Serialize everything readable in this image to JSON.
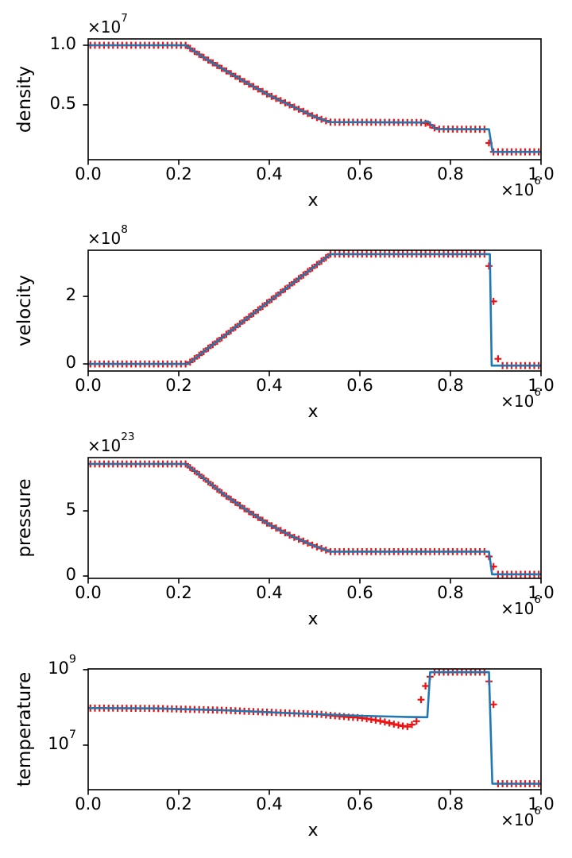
{
  "figure": {
    "background": "#ffffff",
    "line_color": "#1f77b4",
    "marker_color": "#ee1111",
    "axis_color": "#000000"
  },
  "x_axis": {
    "label": "x",
    "lim": [
      0,
      1000000
    ],
    "offset": {
      "text": "×10",
      "exp": "6"
    },
    "ticks": [
      {
        "v": 0,
        "label": "0.0"
      },
      {
        "v": 200000,
        "label": "0.2"
      },
      {
        "v": 400000,
        "label": "0.4"
      },
      {
        "v": 600000,
        "label": "0.6"
      },
      {
        "v": 800000,
        "label": "0.8"
      },
      {
        "v": 1000000,
        "label": "1.0"
      }
    ]
  },
  "marker_series": {
    "style": "plus",
    "count": 100,
    "x_first": 5000,
    "x_spacing": 10000
  },
  "chart_data": [
    {
      "type": "line",
      "ylabel": "density",
      "yscale": "linear",
      "ylim": [
        400000,
        10530000
      ],
      "y_offset": {
        "text": "×10",
        "exp": "7"
      },
      "yticks": [
        {
          "v": 5000000,
          "label": "0.5"
        },
        {
          "v": 10000000,
          "label": "1.0"
        }
      ],
      "line": [
        [
          0,
          10000000.0
        ],
        [
          215000,
          10000000.0
        ],
        [
          250000,
          9100000.0
        ],
        [
          300000,
          7950000.0
        ],
        [
          350000,
          6850000.0
        ],
        [
          400000,
          5800000.0
        ],
        [
          450000,
          4900000.0
        ],
        [
          500000,
          4000000.0
        ],
        [
          533000,
          3550000.0
        ],
        [
          740000,
          3520000.0
        ],
        [
          750000,
          3620000.0
        ],
        [
          758000,
          3300000.0
        ],
        [
          768000,
          2970000.0
        ],
        [
          885000,
          2950000.0
        ],
        [
          893000,
          1050000.0
        ],
        [
          1000000,
          1050000.0
        ]
      ],
      "marker_overrides": [
        [
          745000,
          3450000.0
        ],
        [
          755000,
          3320000.0
        ],
        [
          885000,
          1800000.0
        ]
      ]
    },
    {
      "type": "line",
      "ylabel": "velocity",
      "yscale": "linear",
      "ylim": [
        -21000000,
        336500000
      ],
      "y_offset": {
        "text": "×10",
        "exp": "8"
      },
      "yticks": [
        {
          "v": 0,
          "label": "0"
        },
        {
          "v": 200000000,
          "label": "2"
        }
      ],
      "line": [
        [
          0,
          0
        ],
        [
          220000,
          0
        ],
        [
          535000,
          325000000.0
        ],
        [
          887000,
          325000000.0
        ],
        [
          891000,
          -5000000.0
        ],
        [
          1000000,
          -5000000.0
        ]
      ],
      "marker_overrides": [
        [
          885000,
          290000000.0
        ],
        [
          895000,
          185000000.0
        ],
        [
          905000,
          15000000.0
        ]
      ]
    },
    {
      "type": "line",
      "ylabel": "pressure",
      "yscale": "linear",
      "ylim": [
        -1.8e+22,
        9.09e+23
      ],
      "y_offset": {
        "text": "×10",
        "exp": "23"
      },
      "yticks": [
        {
          "v": 0,
          "label": "0"
        },
        {
          "v": 5e+23,
          "label": "5"
        }
      ],
      "line": [
        [
          0,
          8.6e+23
        ],
        [
          215000,
          8.6e+23
        ],
        [
          250000,
          7.65e+23
        ],
        [
          300000,
          6.25e+23
        ],
        [
          350000,
          5.05e+23
        ],
        [
          400000,
          3.95e+23
        ],
        [
          450000,
          3.05e+23
        ],
        [
          500000,
          2.3e+23
        ],
        [
          535000,
          1.87e+23
        ],
        [
          885000,
          1.87e+23
        ],
        [
          892000,
          1.3e+22
        ],
        [
          1000000,
          1.3e+22
        ]
      ],
      "marker_overrides": [
        [
          885000,
          1.5e+23
        ],
        [
          895000,
          7.3e+22
        ]
      ]
    },
    {
      "type": "line",
      "ylabel": "temperature",
      "yscale": "log",
      "ylim": [
        660000,
        1047000000
      ],
      "yticks": [
        {
          "v": 10000000.0,
          "base": "10",
          "exp": "7"
        },
        {
          "v": 1000000000.0,
          "base": "10",
          "exp": "9"
        }
      ],
      "line": [
        [
          0,
          96000000.0
        ],
        [
          150000,
          94000000.0
        ],
        [
          300000,
          84000000.0
        ],
        [
          450000,
          70000000.0
        ],
        [
          600000,
          60000000.0
        ],
        [
          700000,
          56000000.0
        ],
        [
          749000,
          55000000.0
        ],
        [
          755000,
          860000000.0
        ],
        [
          885000,
          860000000.0
        ],
        [
          892500,
          950000.0
        ],
        [
          1000000,
          950000.0
        ]
      ],
      "marker_overrides": [
        [
          525000,
          63000000.0
        ],
        [
          535000,
          61500000.0
        ],
        [
          545000,
          60000000.0
        ],
        [
          555000,
          58500000.0
        ],
        [
          565000,
          57000000.0
        ],
        [
          575000,
          55500000.0
        ],
        [
          585000,
          54500000.0
        ],
        [
          595000,
          53500000.0
        ],
        [
          605000,
          52000000.0
        ],
        [
          615000,
          50000000.0
        ],
        [
          625000,
          48000000.0
        ],
        [
          635000,
          46000000.0
        ],
        [
          645000,
          43500000.0
        ],
        [
          655000,
          41000000.0
        ],
        [
          665000,
          38500000.0
        ],
        [
          675000,
          36000000.0
        ],
        [
          685000,
          34000000.0
        ],
        [
          695000,
          32000000.0
        ],
        [
          705000,
          31000000.0
        ],
        [
          715000,
          35000000.0
        ],
        [
          725000,
          43000000.0
        ],
        [
          735000,
          160000000.0
        ],
        [
          745000,
          370000000.0
        ],
        [
          755000,
          650000000.0
        ],
        [
          885000,
          490000000.0
        ],
        [
          895000,
          120000000.0
        ]
      ]
    }
  ]
}
